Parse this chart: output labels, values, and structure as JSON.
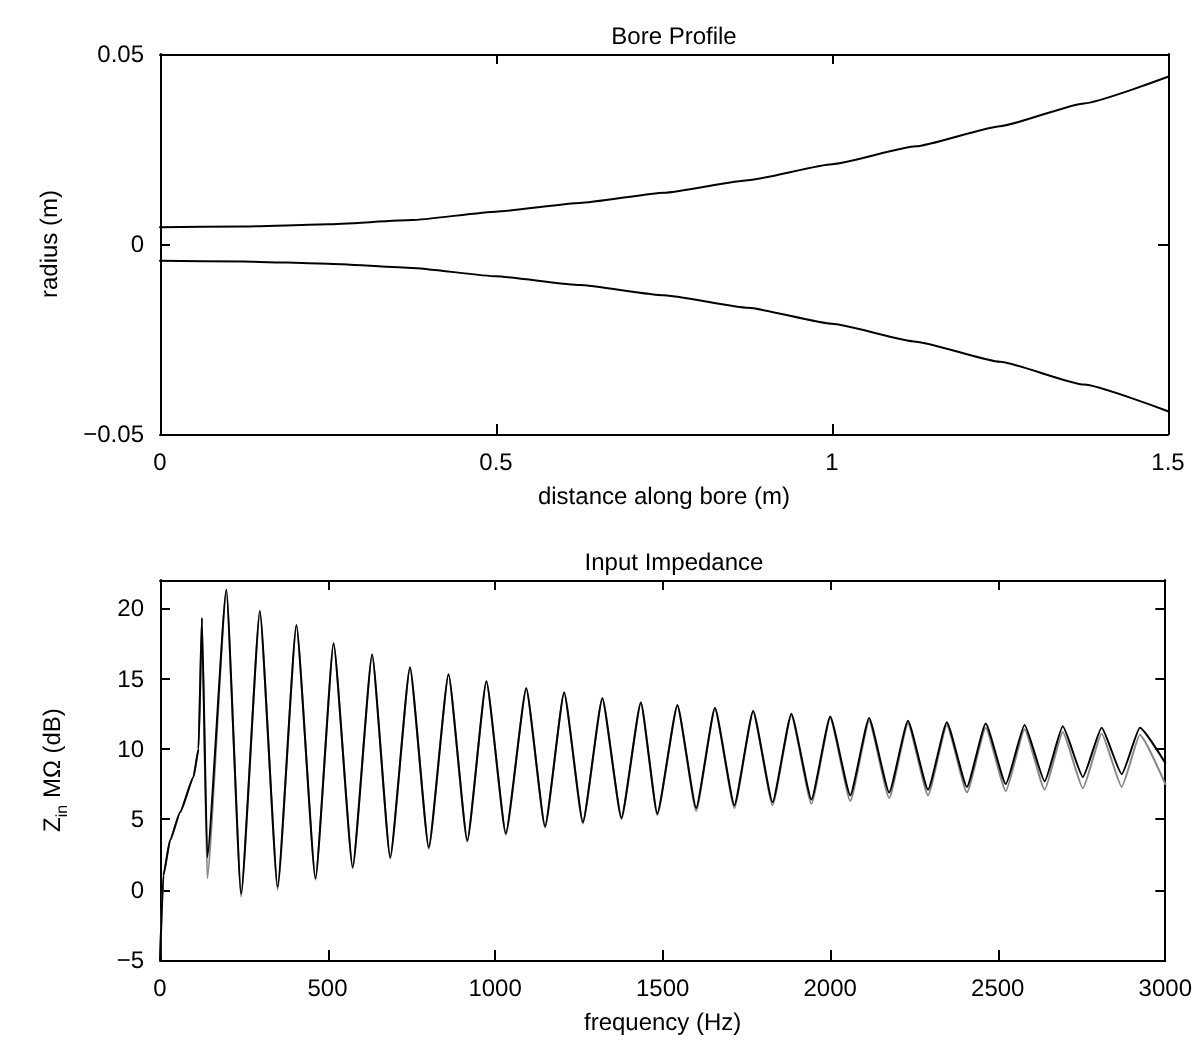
{
  "chart_data": [
    {
      "type": "line",
      "title": "Bore Profile",
      "xlabel": "distance along bore (m)",
      "ylabel": "radius (m)",
      "xlim": [
        0,
        1.5
      ],
      "xticks": [
        0,
        0.5,
        1,
        1.5
      ],
      "ylim": [
        -0.05,
        0.05
      ],
      "yticks": [
        {
          "value": -0.05,
          "label": "−0.05"
        },
        0,
        0.05
      ],
      "grid": false,
      "marker": "none",
      "line_style": "solid",
      "x": [
        0,
        0.125,
        0.25,
        0.375,
        0.5,
        0.625,
        0.75,
        0.875,
        1.0,
        1.125,
        1.25,
        1.375,
        1.5
      ],
      "series": [
        {
          "color": "#000000",
          "values": [
            0.0044,
            0.0046,
            0.0052,
            0.0063,
            0.0085,
            0.0108,
            0.0135,
            0.0168,
            0.021,
            0.0257,
            0.031,
            0.037,
            0.044
          ]
        },
        {
          "color": "#000000",
          "values": [
            -0.0044,
            -0.0046,
            -0.0052,
            -0.0063,
            -0.0085,
            -0.0108,
            -0.0135,
            -0.0168,
            -0.021,
            -0.0257,
            -0.031,
            -0.037,
            -0.044
          ]
        }
      ]
    },
    {
      "type": "line",
      "title": "Input Impedance",
      "xlabel": "frequency (Hz)",
      "ylabel": "Z$_{in}$ MΩ (dB)",
      "xlim": [
        0,
        3000
      ],
      "xticks": [
        0,
        500,
        1000,
        1500,
        2000,
        2500,
        3000
      ],
      "ylim": [
        -5,
        22
      ],
      "yticks": [
        {
          "value": -5,
          "label": "−5"
        },
        0,
        5,
        10,
        15,
        20
      ],
      "grid": false,
      "marker": "none",
      "line_style": "solid",
      "x": [
        0,
        10,
        30,
        60,
        100,
        115,
        125,
        141,
        198,
        242,
        298,
        351,
        407,
        464,
        518,
        575,
        633,
        687,
        746,
        802,
        861,
        917,
        974,
        1032,
        1093,
        1149,
        1206,
        1262,
        1320,
        1377,
        1435,
        1484,
        1544,
        1600,
        1656,
        1714,
        1770,
        1828,
        1884,
        1944,
        2000,
        2060,
        2116,
        2176,
        2232,
        2292,
        2348,
        2408,
        2464,
        2524,
        2580,
        2640,
        2694,
        2754,
        2810,
        2870,
        2924,
        3000
      ],
      "series": [
        {
          "color": "#888888",
          "values": [
            -5,
            1,
            3.5,
            5.5,
            8,
            10,
            19.3,
            0.8,
            21.3,
            -0.5,
            19.8,
            0,
            18.8,
            0.7,
            17.5,
            1.5,
            16.7,
            2.2,
            15.8,
            2.9,
            15.3,
            3.4,
            14.8,
            3.9,
            14.3,
            4.4,
            14.0,
            4.7,
            13.6,
            5.0,
            13.3,
            5.3,
            13.1,
            5.6,
            12.9,
            5.8,
            12.7,
            6.0,
            12.4,
            6.1,
            12.2,
            6.3,
            12.0,
            6.5,
            11.8,
            6.7,
            11.7,
            6.9,
            11.5,
            7.0,
            11.4,
            7.1,
            11.2,
            7.2,
            11.1,
            7.3,
            11.0,
            7.5
          ]
        },
        {
          "color": "#000000",
          "values": [
            -5,
            1,
            3.5,
            5.5,
            8,
            10,
            19.3,
            2.3,
            21.3,
            -0.3,
            19.8,
            0.2,
            18.8,
            0.8,
            17.5,
            1.6,
            16.7,
            2.3,
            15.8,
            3.0,
            15.3,
            3.5,
            14.8,
            4.0,
            14.3,
            4.5,
            14.0,
            4.8,
            13.6,
            5.1,
            13.3,
            5.4,
            13.1,
            5.8,
            12.9,
            6.0,
            12.7,
            6.2,
            12.5,
            6.4,
            12.3,
            6.7,
            12.2,
            6.9,
            12.0,
            7.1,
            11.9,
            7.3,
            11.8,
            7.5,
            11.7,
            7.7,
            11.6,
            8.0,
            11.5,
            8.2,
            11.5,
            9.0
          ]
        }
      ]
    }
  ]
}
